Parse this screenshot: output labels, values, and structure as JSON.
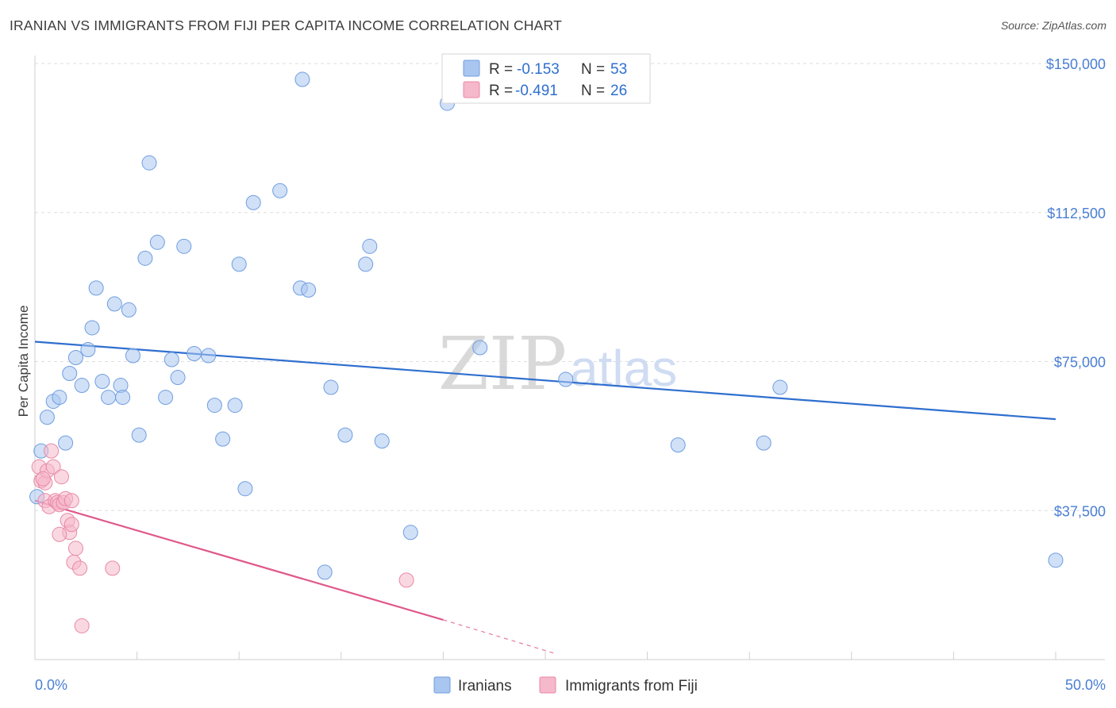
{
  "header": {
    "title": "IRANIAN VS IMMIGRANTS FROM FIJI PER CAPITA INCOME CORRELATION CHART",
    "source": "Source: ZipAtlas.com"
  },
  "watermark": {
    "zip": "ZIP",
    "atlas": "atlas"
  },
  "legend_top": [
    {
      "r_label": "R =",
      "r_value": "-0.153",
      "n_label": "N =",
      "n_value": "53",
      "color": "#a9c6f0"
    },
    {
      "r_label": "R =",
      "r_value": "-0.491",
      "n_label": "N =",
      "n_value": "26",
      "color": "#f6b8cb"
    }
  ],
  "legend_bottom": [
    {
      "label": "Iranians",
      "color": "#a9c6f0"
    },
    {
      "label": "Immigrants from Fiji",
      "color": "#f6b8cb"
    }
  ],
  "chart_data": {
    "type": "scatter",
    "title": "IRANIAN VS IMMIGRANTS FROM FIJI PER CAPITA INCOME CORRELATION CHART",
    "ylabel": "Per Capita Income",
    "xlim": [
      0,
      50
    ],
    "ylim": [
      0,
      152000
    ],
    "x_tick_labels": [
      "0.0%",
      "50.0%"
    ],
    "y_ticks": [
      37500,
      75000,
      112500,
      150000
    ],
    "y_tick_labels": [
      "$37,500",
      "$75,000",
      "$112,500",
      "$150,000"
    ],
    "grid": true,
    "series": [
      {
        "name": "Iranians",
        "color": "#a9c6f0",
        "stroke": "#6f9ee0",
        "trend": {
          "x": [
            0,
            50
          ],
          "y": [
            80000,
            60500
          ],
          "color": "#2f6fcf"
        },
        "points": [
          [
            0.3,
            52500
          ],
          [
            0.6,
            61000
          ],
          [
            0.9,
            65000
          ],
          [
            1.2,
            66000
          ],
          [
            1.5,
            54500
          ],
          [
            1.7,
            72000
          ],
          [
            2.0,
            76000
          ],
          [
            2.3,
            69000
          ],
          [
            2.6,
            78000
          ],
          [
            2.8,
            83500
          ],
          [
            3.0,
            93500
          ],
          [
            3.3,
            70000
          ],
          [
            3.6,
            66000
          ],
          [
            3.9,
            89500
          ],
          [
            4.2,
            69000
          ],
          [
            4.3,
            66000
          ],
          [
            4.6,
            88000
          ],
          [
            4.8,
            76500
          ],
          [
            5.1,
            56500
          ],
          [
            5.4,
            101000
          ],
          [
            5.6,
            125000
          ],
          [
            6.0,
            105000
          ],
          [
            6.4,
            66000
          ],
          [
            6.7,
            75500
          ],
          [
            7.0,
            71000
          ],
          [
            7.3,
            104000
          ],
          [
            7.8,
            77000
          ],
          [
            8.5,
            76500
          ],
          [
            8.8,
            64000
          ],
          [
            9.2,
            55500
          ],
          [
            9.8,
            64000
          ],
          [
            10.0,
            99500
          ],
          [
            10.3,
            43000
          ],
          [
            10.7,
            115000
          ],
          [
            12.0,
            118000
          ],
          [
            13.0,
            93500
          ],
          [
            13.1,
            146000
          ],
          [
            13.4,
            93000
          ],
          [
            14.2,
            22000
          ],
          [
            14.5,
            68500
          ],
          [
            15.2,
            56500
          ],
          [
            16.2,
            99500
          ],
          [
            16.4,
            104000
          ],
          [
            17.0,
            55000
          ],
          [
            18.4,
            32000
          ],
          [
            20.2,
            140000
          ],
          [
            21.8,
            78500
          ],
          [
            26.0,
            70500
          ],
          [
            31.5,
            54000
          ],
          [
            36.5,
            68500
          ],
          [
            35.7,
            54500
          ],
          [
            50.0,
            25000
          ],
          [
            0.1,
            41000
          ]
        ]
      },
      {
        "name": "Immigrants from Fiji",
        "color": "#f6b8cb",
        "stroke": "#e889a6",
        "trend": {
          "x": [
            0,
            20
          ],
          "y": [
            40000,
            10000
          ],
          "color": "#e0588a",
          "dashed_to": {
            "x": 25.5,
            "y": 1500
          }
        },
        "points": [
          [
            0.2,
            48500
          ],
          [
            0.3,
            45000
          ],
          [
            0.5,
            44500
          ],
          [
            0.6,
            47500
          ],
          [
            0.8,
            52500
          ],
          [
            0.9,
            48500
          ],
          [
            0.5,
            40000
          ],
          [
            0.7,
            38500
          ],
          [
            1.0,
            40000
          ],
          [
            1.1,
            39500
          ],
          [
            1.3,
            46000
          ],
          [
            1.2,
            39000
          ],
          [
            1.4,
            39500
          ],
          [
            1.5,
            40500
          ],
          [
            1.6,
            35000
          ],
          [
            1.7,
            32000
          ],
          [
            1.2,
            31500
          ],
          [
            1.8,
            40000
          ],
          [
            1.8,
            34000
          ],
          [
            2.0,
            28000
          ],
          [
            1.9,
            24500
          ],
          [
            2.2,
            23000
          ],
          [
            3.8,
            23000
          ],
          [
            2.3,
            8500
          ],
          [
            18.2,
            20000
          ],
          [
            0.4,
            45500
          ]
        ]
      }
    ]
  }
}
